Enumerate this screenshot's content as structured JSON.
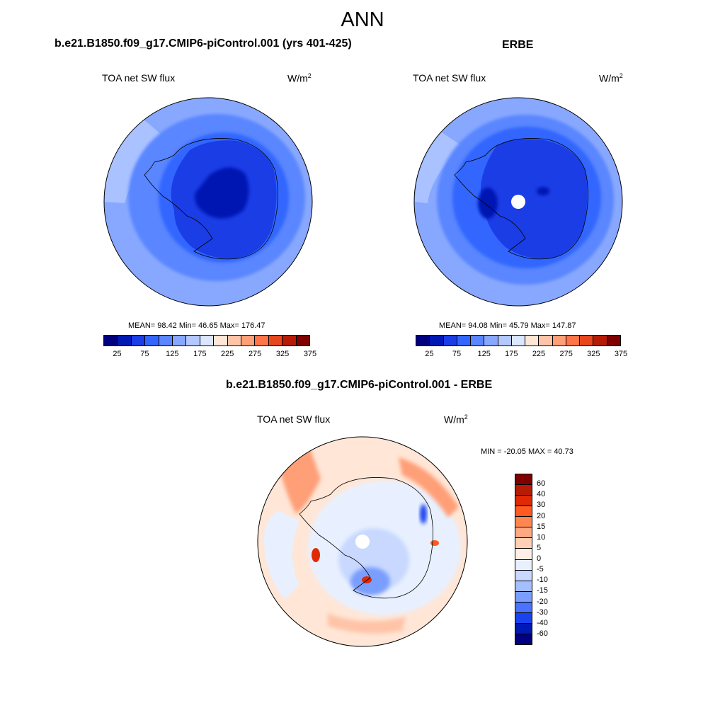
{
  "chart_data": {
    "title": "ANN",
    "panels": [
      {
        "type": "heatmap",
        "projection": "south polar stereographic",
        "case_title": "b.e21.B1850.f09_g17.CMIP6-piControl.001 (yrs 401-425)",
        "variable": "TOA net SW flux",
        "units_base": "W/m",
        "units_exp": "2",
        "stats": "MEAN=  98.42  Min=  46.65  Max= 176.47",
        "mean": 98.42,
        "min": 46.65,
        "max": 176.47,
        "colorbar": {
          "levels": [
            25,
            50,
            75,
            100,
            125,
            150,
            175,
            200,
            225,
            250,
            275,
            300,
            325,
            350,
            375
          ],
          "tick_labels": [
            "25",
            "75",
            "125",
            "175",
            "225",
            "275",
            "325",
            "375"
          ],
          "colors": [
            "#00007f",
            "#0019b3",
            "#1a3de6",
            "#3366ff",
            "#5a86ff",
            "#88a8ff",
            "#b3c8ff",
            "#dbe6ff",
            "#ffe6d6",
            "#ffc4a8",
            "#ff9f78",
            "#ff7448",
            "#e8461d",
            "#b71b05",
            "#800000"
          ]
        }
      },
      {
        "type": "heatmap",
        "projection": "south polar stereographic",
        "case_title": "ERBE",
        "variable": "TOA net SW flux",
        "units_base": "W/m",
        "units_exp": "2",
        "stats": "MEAN=  94.08  Min=  45.79  Max= 147.87",
        "mean": 94.08,
        "min": 45.79,
        "max": 147.87,
        "colorbar": {
          "levels": [
            25,
            50,
            75,
            100,
            125,
            150,
            175,
            200,
            225,
            250,
            275,
            300,
            325,
            350,
            375
          ],
          "tick_labels": [
            "25",
            "75",
            "125",
            "175",
            "225",
            "275",
            "325",
            "375"
          ],
          "colors": [
            "#00007f",
            "#0019b3",
            "#1a3de6",
            "#3366ff",
            "#5a86ff",
            "#88a8ff",
            "#b3c8ff",
            "#dbe6ff",
            "#ffe6d6",
            "#ffc4a8",
            "#ff9f78",
            "#ff7448",
            "#e8461d",
            "#b71b05",
            "#800000"
          ]
        }
      },
      {
        "type": "heatmap",
        "projection": "south polar stereographic",
        "case_title": "b.e21.B1850.f09_g17.CMIP6-piControl.001 - ERBE",
        "variable": "TOA net SW flux",
        "units_base": "W/m",
        "units_exp": "2",
        "stats": "MIN = -20.05 MAX =  40.73",
        "min": -20.05,
        "max": 40.73,
        "colorbar": {
          "levels": [
            60,
            40,
            30,
            20,
            15,
            10,
            5,
            0,
            -5,
            -10,
            -15,
            -20,
            -30,
            -40,
            -60
          ],
          "tick_labels": [
            "60",
            "40",
            "30",
            "20",
            "15",
            "10",
            "5",
            "0",
            "-5",
            "-10",
            "-15",
            "-20",
            "-30",
            "-40",
            "-60"
          ],
          "colors": [
            "#800000",
            "#b71b05",
            "#e02a05",
            "#ff5a1f",
            "#ff8650",
            "#ffa882",
            "#ffd0b4",
            "#fff0e6",
            "#e8f0ff",
            "#c8d8ff",
            "#a4bfff",
            "#7a9eff",
            "#4a74ff",
            "#1a43f0",
            "#0019b3",
            "#000080"
          ]
        }
      }
    ]
  }
}
